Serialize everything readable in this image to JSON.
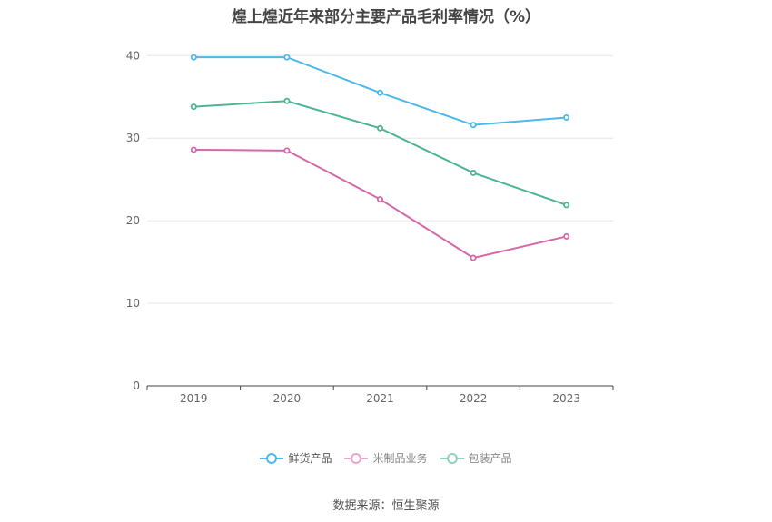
{
  "chart_data": {
    "type": "line",
    "title": "煌上煌近年来部分主要产品毛利率情况（%）",
    "categories": [
      "2019",
      "2020",
      "2021",
      "2022",
      "2023"
    ],
    "yticks": [
      "0",
      "10",
      "20",
      "30",
      "40"
    ],
    "ylim": [
      0,
      43
    ],
    "grid": true,
    "legend_position": "bottom",
    "series": [
      {
        "name": "鲜货产品",
        "color": "#4db8ea",
        "values": [
          39.8,
          39.8,
          35.5,
          31.6,
          32.5
        ]
      },
      {
        "name": "米制品业务",
        "color": "#d667a8",
        "values": [
          28.6,
          28.5,
          22.6,
          15.5,
          18.1
        ]
      },
      {
        "name": "包装产品",
        "color": "#4db596",
        "values": [
          33.8,
          34.5,
          31.2,
          25.8,
          21.9
        ]
      }
    ]
  },
  "legend": {
    "items": [
      {
        "label": "鲜货产品",
        "color": "#4db8ea",
        "active": true
      },
      {
        "label": "米制品业务",
        "color": "#e8a6cc",
        "active": false
      },
      {
        "label": "包装产品",
        "color": "#8fd3bd",
        "active": false
      }
    ]
  },
  "source": "数据来源：恒生聚源"
}
